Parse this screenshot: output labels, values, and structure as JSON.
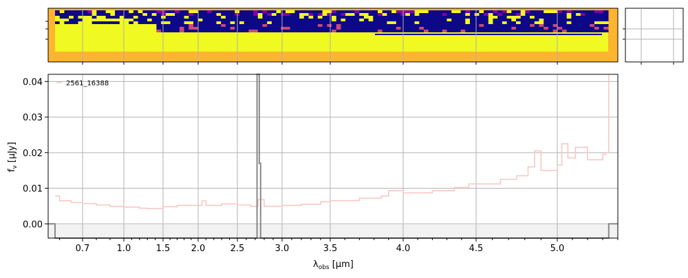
{
  "chart_data": {
    "type": "line",
    "legend": {
      "label": "2561_16388",
      "placement": "top-left"
    },
    "xlabel": {
      "base": "λ",
      "sub": "obs",
      "unit": " [μm]"
    },
    "ylabel": {
      "base": "f",
      "sub": "ν",
      "unit": " [μJy]"
    },
    "grid": true,
    "xlim": [
      0.55,
      5.4
    ],
    "x_scale": "nonlinear-spectral",
    "x_ticks": [
      {
        "label": "0.7",
        "value": 0.7
      },
      {
        "label": "1.0",
        "value": 1.0
      },
      {
        "label": "1.5",
        "value": 1.5
      },
      {
        "label": "2.0",
        "value": 2.0
      },
      {
        "label": "2.5",
        "value": 2.5
      },
      {
        "label": "3.0",
        "value": 3.0
      },
      {
        "label": "3.5",
        "value": 3.5
      },
      {
        "label": "4.0",
        "value": 4.0
      },
      {
        "label": "4.5",
        "value": 4.5
      },
      {
        "label": "5.0",
        "value": 5.0
      }
    ],
    "ylim": [
      -0.004,
      0.042
    ],
    "y_ticks": [
      "0.00",
      "0.01",
      "0.02",
      "0.03",
      "0.04"
    ],
    "y_tick_values": [
      0.0,
      0.01,
      0.02,
      0.03,
      0.04
    ],
    "colors": {
      "model": "#f8c8c4",
      "data": "#888888",
      "grid": "#b0b0b0",
      "error_band": "#f2f2f2"
    },
    "model_series": {
      "name": "model",
      "x": [
        0.58,
        0.6,
        0.65,
        0.7,
        0.8,
        0.9,
        1.0,
        1.1,
        1.2,
        1.3,
        1.5,
        1.7,
        2.0,
        2.05,
        2.1,
        2.3,
        2.5,
        2.65,
        2.73,
        2.8,
        3.0,
        3.2,
        3.4,
        3.5,
        3.7,
        3.85,
        3.9,
        4.0,
        4.2,
        4.35,
        4.45,
        4.55,
        4.65,
        4.75,
        4.82,
        4.86,
        4.9,
        5.0,
        5.03,
        5.07,
        5.12,
        5.2,
        5.3,
        5.32,
        5.34
      ],
      "y": [
        0.0078,
        0.0065,
        0.006,
        0.0057,
        0.0053,
        0.0049,
        0.0047,
        0.0047,
        0.0044,
        0.0043,
        0.0048,
        0.0052,
        0.0052,
        0.0065,
        0.0052,
        0.0056,
        0.0053,
        0.0049,
        0.0068,
        0.0049,
        0.0052,
        0.0055,
        0.0062,
        0.0065,
        0.0072,
        0.0078,
        0.0093,
        0.0087,
        0.0093,
        0.0102,
        0.0112,
        0.0112,
        0.0125,
        0.0135,
        0.016,
        0.0205,
        0.015,
        0.0165,
        0.0225,
        0.0185,
        0.0215,
        0.018,
        0.0195,
        0.02,
        0.042
      ]
    },
    "data_series": {
      "name": "data",
      "x": [
        0.55,
        0.58,
        0.58,
        2.72,
        2.72,
        2.745,
        2.745,
        2.76,
        2.76,
        2.775,
        2.775,
        5.34,
        5.34,
        5.4
      ],
      "y": [
        0.0,
        0.0,
        -0.0045,
        -0.0045,
        0.042,
        0.042,
        0.017,
        0.017,
        -0.0045,
        -0.0045,
        -0.0045,
        -0.0045,
        0.0,
        0.0
      ]
    }
  },
  "spectrum_2d": {
    "colors": {
      "dark": "#0d0887",
      "yellow": "#f0f921",
      "orange": "#fdb42f",
      "magenta": "#cc4778",
      "purple": "#7e03a8"
    }
  }
}
